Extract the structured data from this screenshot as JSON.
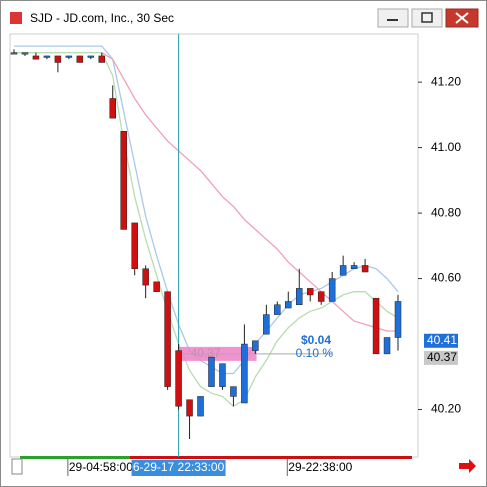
{
  "window_title": "SJD - JD.com, Inc., 30 Sec",
  "chart_data": {
    "type": "candlestick",
    "categories": [
      null,
      null,
      null,
      null,
      null,
      "29-04:58:00",
      null,
      null,
      null,
      null,
      null,
      null,
      null,
      null,
      null,
      "6-29-17 22:33:00",
      null,
      null,
      null,
      null,
      null,
      null,
      null,
      null,
      null,
      "29-22:38:00",
      null,
      null,
      null,
      null,
      null,
      null,
      null,
      null,
      null,
      null
    ],
    "candles": [
      [
        41.29,
        41.3,
        41.29,
        41.29
      ],
      [
        41.29,
        41.29,
        41.28,
        41.29
      ],
      [
        41.28,
        41.29,
        41.27,
        41.27
      ],
      [
        41.28,
        41.28,
        41.27,
        41.28
      ],
      [
        41.28,
        41.28,
        41.23,
        41.26
      ],
      [
        41.28,
        41.28,
        41.27,
        41.28
      ],
      [
        41.28,
        41.28,
        41.26,
        41.26
      ],
      [
        41.28,
        41.28,
        41.27,
        41.28
      ],
      [
        41.28,
        41.29,
        41.26,
        41.26
      ],
      [
        41.15,
        41.19,
        41.09,
        41.09
      ],
      [
        41.05,
        41.05,
        40.75,
        40.75
      ],
      [
        40.77,
        40.77,
        40.61,
        40.63
      ],
      [
        40.63,
        40.64,
        40.54,
        40.58
      ],
      [
        40.59,
        40.59,
        40.56,
        40.56
      ],
      [
        40.56,
        40.56,
        40.26,
        40.27
      ],
      [
        40.38,
        40.4,
        40.2,
        40.21
      ],
      [
        40.23,
        40.23,
        40.11,
        40.18
      ],
      [
        40.18,
        40.24,
        40.18,
        40.24
      ],
      [
        40.27,
        40.36,
        40.27,
        40.36
      ],
      [
        40.27,
        40.34,
        40.26,
        40.34
      ],
      [
        40.24,
        40.27,
        40.21,
        40.27
      ],
      [
        40.22,
        40.46,
        40.22,
        40.4
      ],
      [
        40.38,
        40.41,
        40.37,
        40.41
      ],
      [
        40.43,
        40.52,
        40.43,
        40.49
      ],
      [
        40.49,
        40.53,
        40.49,
        40.52
      ],
      [
        40.51,
        40.56,
        40.51,
        40.53
      ],
      [
        40.52,
        40.63,
        40.52,
        40.57
      ],
      [
        40.57,
        40.57,
        40.53,
        40.55
      ],
      [
        40.56,
        40.56,
        40.52,
        40.53
      ],
      [
        40.53,
        40.62,
        40.53,
        40.6
      ],
      [
        40.61,
        40.67,
        40.61,
        40.64
      ],
      [
        40.63,
        40.65,
        40.63,
        40.64
      ],
      [
        40.64,
        40.66,
        40.62,
        40.62
      ],
      [
        40.54,
        40.54,
        40.37,
        40.37
      ],
      [
        40.37,
        40.42,
        40.37,
        40.42
      ],
      [
        40.42,
        40.55,
        40.38,
        40.53
      ]
    ],
    "up_color": "#1e6fd9",
    "down_color": "#d01010",
    "lines": [
      {
        "color": "#a9c8ea",
        "values": [
          41.31,
          41.31,
          41.31,
          41.31,
          41.31,
          41.31,
          41.31,
          41.31,
          41.31,
          41.27,
          41.11,
          40.95,
          40.79,
          40.67,
          40.56,
          40.46,
          40.38,
          40.35,
          40.33,
          40.31,
          40.31,
          40.35,
          40.4,
          40.44,
          40.48,
          40.52,
          40.55,
          40.56,
          40.57,
          40.59,
          40.61,
          40.63,
          40.64,
          40.63,
          40.6,
          40.56
        ]
      },
      {
        "color": "#b9dcb0",
        "values": [
          41.29,
          41.29,
          41.29,
          41.29,
          41.29,
          41.29,
          41.29,
          41.29,
          41.29,
          41.22,
          41.02,
          40.85,
          40.72,
          40.61,
          40.5,
          40.4,
          40.32,
          40.27,
          40.25,
          40.24,
          40.21,
          40.23,
          40.3,
          40.35,
          40.41,
          40.45,
          40.48,
          40.5,
          40.51,
          40.53,
          40.55,
          40.56,
          40.56,
          40.53,
          40.5,
          40.48
        ]
      },
      {
        "color": "#f0a0b8",
        "values": [
          null,
          null,
          null,
          null,
          null,
          null,
          null,
          null,
          41.29,
          41.27,
          41.21,
          41.15,
          41.1,
          41.06,
          41.02,
          40.99,
          40.96,
          40.93,
          40.89,
          40.85,
          40.82,
          40.78,
          40.75,
          40.72,
          40.69,
          40.65,
          40.62,
          40.59,
          40.56,
          40.53,
          40.5,
          40.47,
          40.46,
          40.45,
          40.44,
          40.44
        ]
      }
    ],
    "ylim": [
      40.055,
      41.347
    ],
    "yticks": [
      {
        "value": 41.2,
        "label": "41.20"
      },
      {
        "value": 41.0,
        "label": "41.00"
      },
      {
        "value": 40.8,
        "label": "40.80"
      },
      {
        "value": 40.6,
        "label": "40.60"
      },
      {
        "value": 40.2,
        "label": "40.20"
      }
    ],
    "last_price": 40.41,
    "crosshair": {
      "category": "6-29-17 22:33:00",
      "price": 40.37,
      "change": "$0.04",
      "change_pct": "0.10 %"
    }
  }
}
